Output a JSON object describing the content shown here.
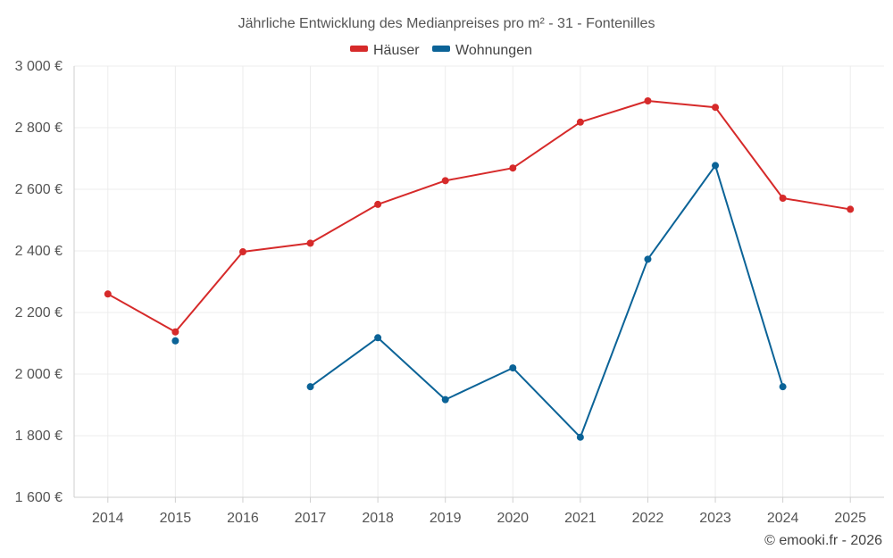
{
  "chart_data": {
    "type": "line",
    "title": "Jährliche Entwicklung des Medianpreises pro m² - 31 - Fontenilles",
    "categories": [
      "2014",
      "2015",
      "2016",
      "2017",
      "2018",
      "2019",
      "2020",
      "2021",
      "2022",
      "2023",
      "2024",
      "2025"
    ],
    "series": [
      {
        "name": "Häuser",
        "color": "#d62a2a",
        "values": [
          2260,
          2137,
          2397,
          2425,
          2551,
          2628,
          2669,
          2818,
          2887,
          2866,
          2571,
          2535
        ]
      },
      {
        "name": "Wohnungen",
        "color": "#0b6397",
        "values": [
          null,
          2108,
          null,
          1959,
          2118,
          1917,
          2020,
          1795,
          2373,
          2677,
          1959,
          null
        ]
      }
    ],
    "ylim": [
      1600,
      3000
    ],
    "yticks": [
      1600,
      1800,
      2000,
      2200,
      2400,
      2600,
      2800,
      3000
    ],
    "ytick_labels": [
      "1 600 €",
      "1 800 €",
      "2 000 €",
      "2 200 €",
      "2 400 €",
      "2 600 €",
      "2 800 €",
      "3 000 €"
    ],
    "grid": true,
    "legend": "top-center"
  },
  "credit": "© emooki.fr - 2026"
}
